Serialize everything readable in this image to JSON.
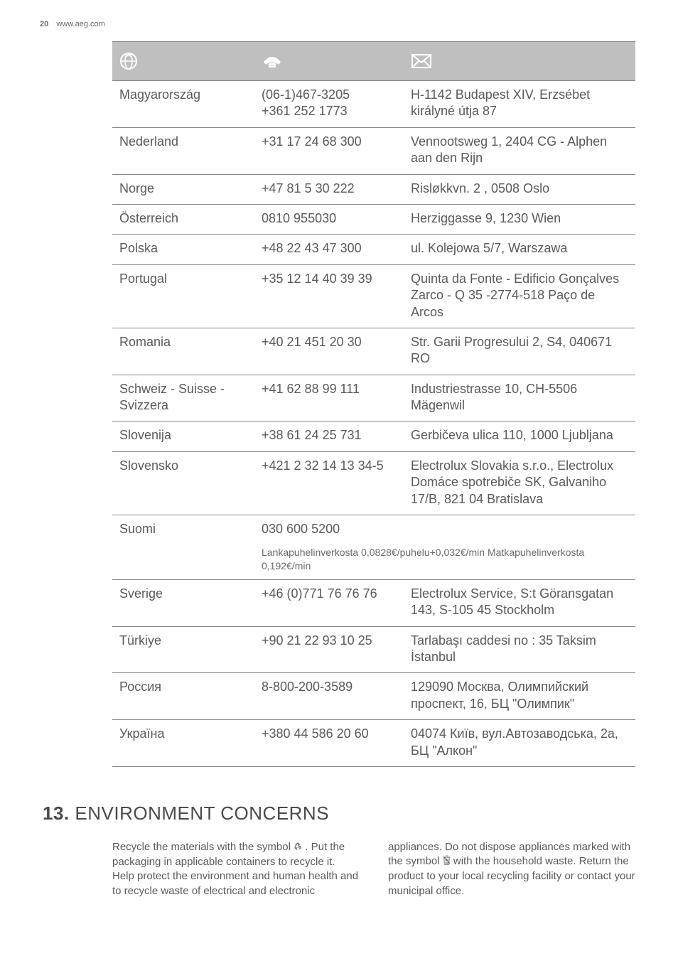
{
  "header": {
    "page_number": "20",
    "site": "www.aeg.com"
  },
  "table": {
    "header_icons": [
      "globe",
      "phone",
      "mail"
    ],
    "rows": [
      {
        "country": "Magyarország",
        "phone": "(06-1)467-3205\n+361 252 1773",
        "address": "H-1142 Budapest XIV, Erzsébet királyné útja 87"
      },
      {
        "country": "Nederland",
        "phone": "+31 17 24 68 300",
        "address": "Vennootsweg 1, 2404 CG - Alphen aan den Rijn"
      },
      {
        "country": "Norge",
        "phone": "+47 81 5 30 222",
        "address": "Risløkkvn. 2 , 0508 Oslo"
      },
      {
        "country": "Österreich",
        "phone": "0810 955030",
        "address": "Herziggasse 9, 1230 Wien"
      },
      {
        "country": "Polska",
        "phone": "+48 22 43 47 300",
        "address": "ul. Kolejowa 5/7, Warszawa"
      },
      {
        "country": "Portugal",
        "phone": "+35 12 14 40 39 39",
        "address": "Quinta da Fonte - Edificio Gonçalves Zarco - Q 35 -2774-518 Paço de Arcos"
      },
      {
        "country": "Romania",
        "phone": "+40 21 451 20 30",
        "address": "Str. Garii Progresului 2, S4, 040671 RO"
      },
      {
        "country": "Schweiz - Suisse - Svizzera",
        "phone": "+41 62 88 99 111",
        "address": "Industriestrasse 10, CH-5506 Mägenwil"
      },
      {
        "country": "Slovenija",
        "phone": "+38 61 24 25 731",
        "address": "Gerbičeva ulica 110, 1000 Ljubljana"
      },
      {
        "country": "Slovensko",
        "phone": "+421 2 32 14 13 34-5",
        "address": "Electrolux Slovakia s.r.o., Electrolux Domáce spotrebiče SK, Galvaniho 17/B, 821 04 Bratislava"
      },
      {
        "country": "Suomi",
        "phone": "030 600 5200",
        "address": "",
        "note": "Lankapuhelinverkosta 0,0828€/puhelu+0,032€/min Matkapuhelinverkosta 0,192€/min"
      },
      {
        "country": "Sverige",
        "phone": "+46 (0)771 76 76 76",
        "address": "Electrolux Service, S:t Göransgatan 143, S-105 45 Stockholm"
      },
      {
        "country": "Türkiye",
        "phone": "+90 21 22 93 10 25",
        "address": "Tarlabaşı caddesi no : 35 Taksim İstanbul"
      },
      {
        "country": "Россия",
        "phone": "8-800-200-3589",
        "address": "129090 Москва, Олимпийский проспект, 16, БЦ \"Олимпик\""
      },
      {
        "country": "Україна",
        "phone": "+380 44 586 20 60",
        "address": "04074 Київ, вул.Автозаводська, 2а, БЦ \"Алкон\""
      }
    ]
  },
  "section": {
    "number": "13.",
    "title": "ENVIRONMENT CONCERNS",
    "col_left_a": "Recycle the materials with the symbol ",
    "col_left_b": " . Put the packaging in applicable containers to recycle it. Help protect the environment and human health and to recycle waste of electrical and electronic",
    "col_right_a": "appliances. Do not dispose appliances marked with the symbol ",
    "col_right_b": " with the household waste. Return the product to your local recycling facility or contact your municipal office."
  },
  "colors": {
    "header_bg": "#bfbfbf",
    "border": "#888888",
    "text": "#5a5a5a"
  }
}
